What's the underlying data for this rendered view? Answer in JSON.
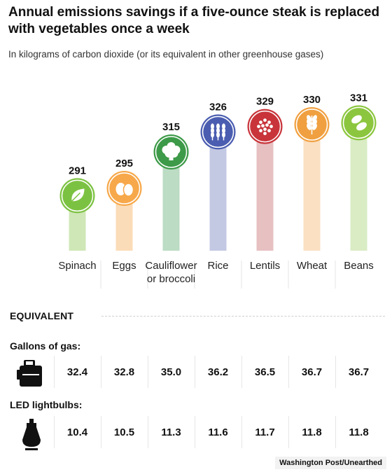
{
  "title": "Annual emissions savings if a five-ounce steak is replaced with vegetables once a week",
  "subtitle": "In kilograms of carbon dioxide (or its equivalent in other greenhouse gases)",
  "chart_data": {
    "type": "bar",
    "categories": [
      "Spinach",
      "Eggs",
      "Cauliflower\nor broccoli",
      "Rice",
      "Lentils",
      "Wheat",
      "Beans"
    ],
    "values": [
      291,
      295,
      315,
      326,
      329,
      330,
      331
    ],
    "series_colors": [
      "#7cc242",
      "#f7a84a",
      "#3d9a48",
      "#4a5db0",
      "#c8343a",
      "#f0a040",
      "#8cc63f"
    ],
    "bar_colors": [
      "#cfe7b7",
      "#fbdcb8",
      "#bcdcc4",
      "#c3c8e3",
      "#e7c0c2",
      "#fbe0c2",
      "#d9ecc4"
    ],
    "icons": [
      "leaf-icon",
      "eggs-icon",
      "broccoli-icon",
      "rice-icon",
      "lentils-icon",
      "wheat-icon",
      "beans-icon"
    ]
  },
  "equivalent": {
    "header": "EQUIVALENT",
    "gas_label": "Gallons of gas:",
    "gas_icon": "gas-can-icon",
    "gas_values": [
      "32.4",
      "32.8",
      "35.0",
      "36.2",
      "36.5",
      "36.7",
      "36.7"
    ],
    "led_label": "LED lightbulbs:",
    "led_icon": "lightbulb-icon",
    "led_values": [
      "10.4",
      "10.5",
      "11.3",
      "11.6",
      "11.7",
      "11.8",
      "11.8"
    ]
  },
  "credit": "Washington Post/Unearthed"
}
